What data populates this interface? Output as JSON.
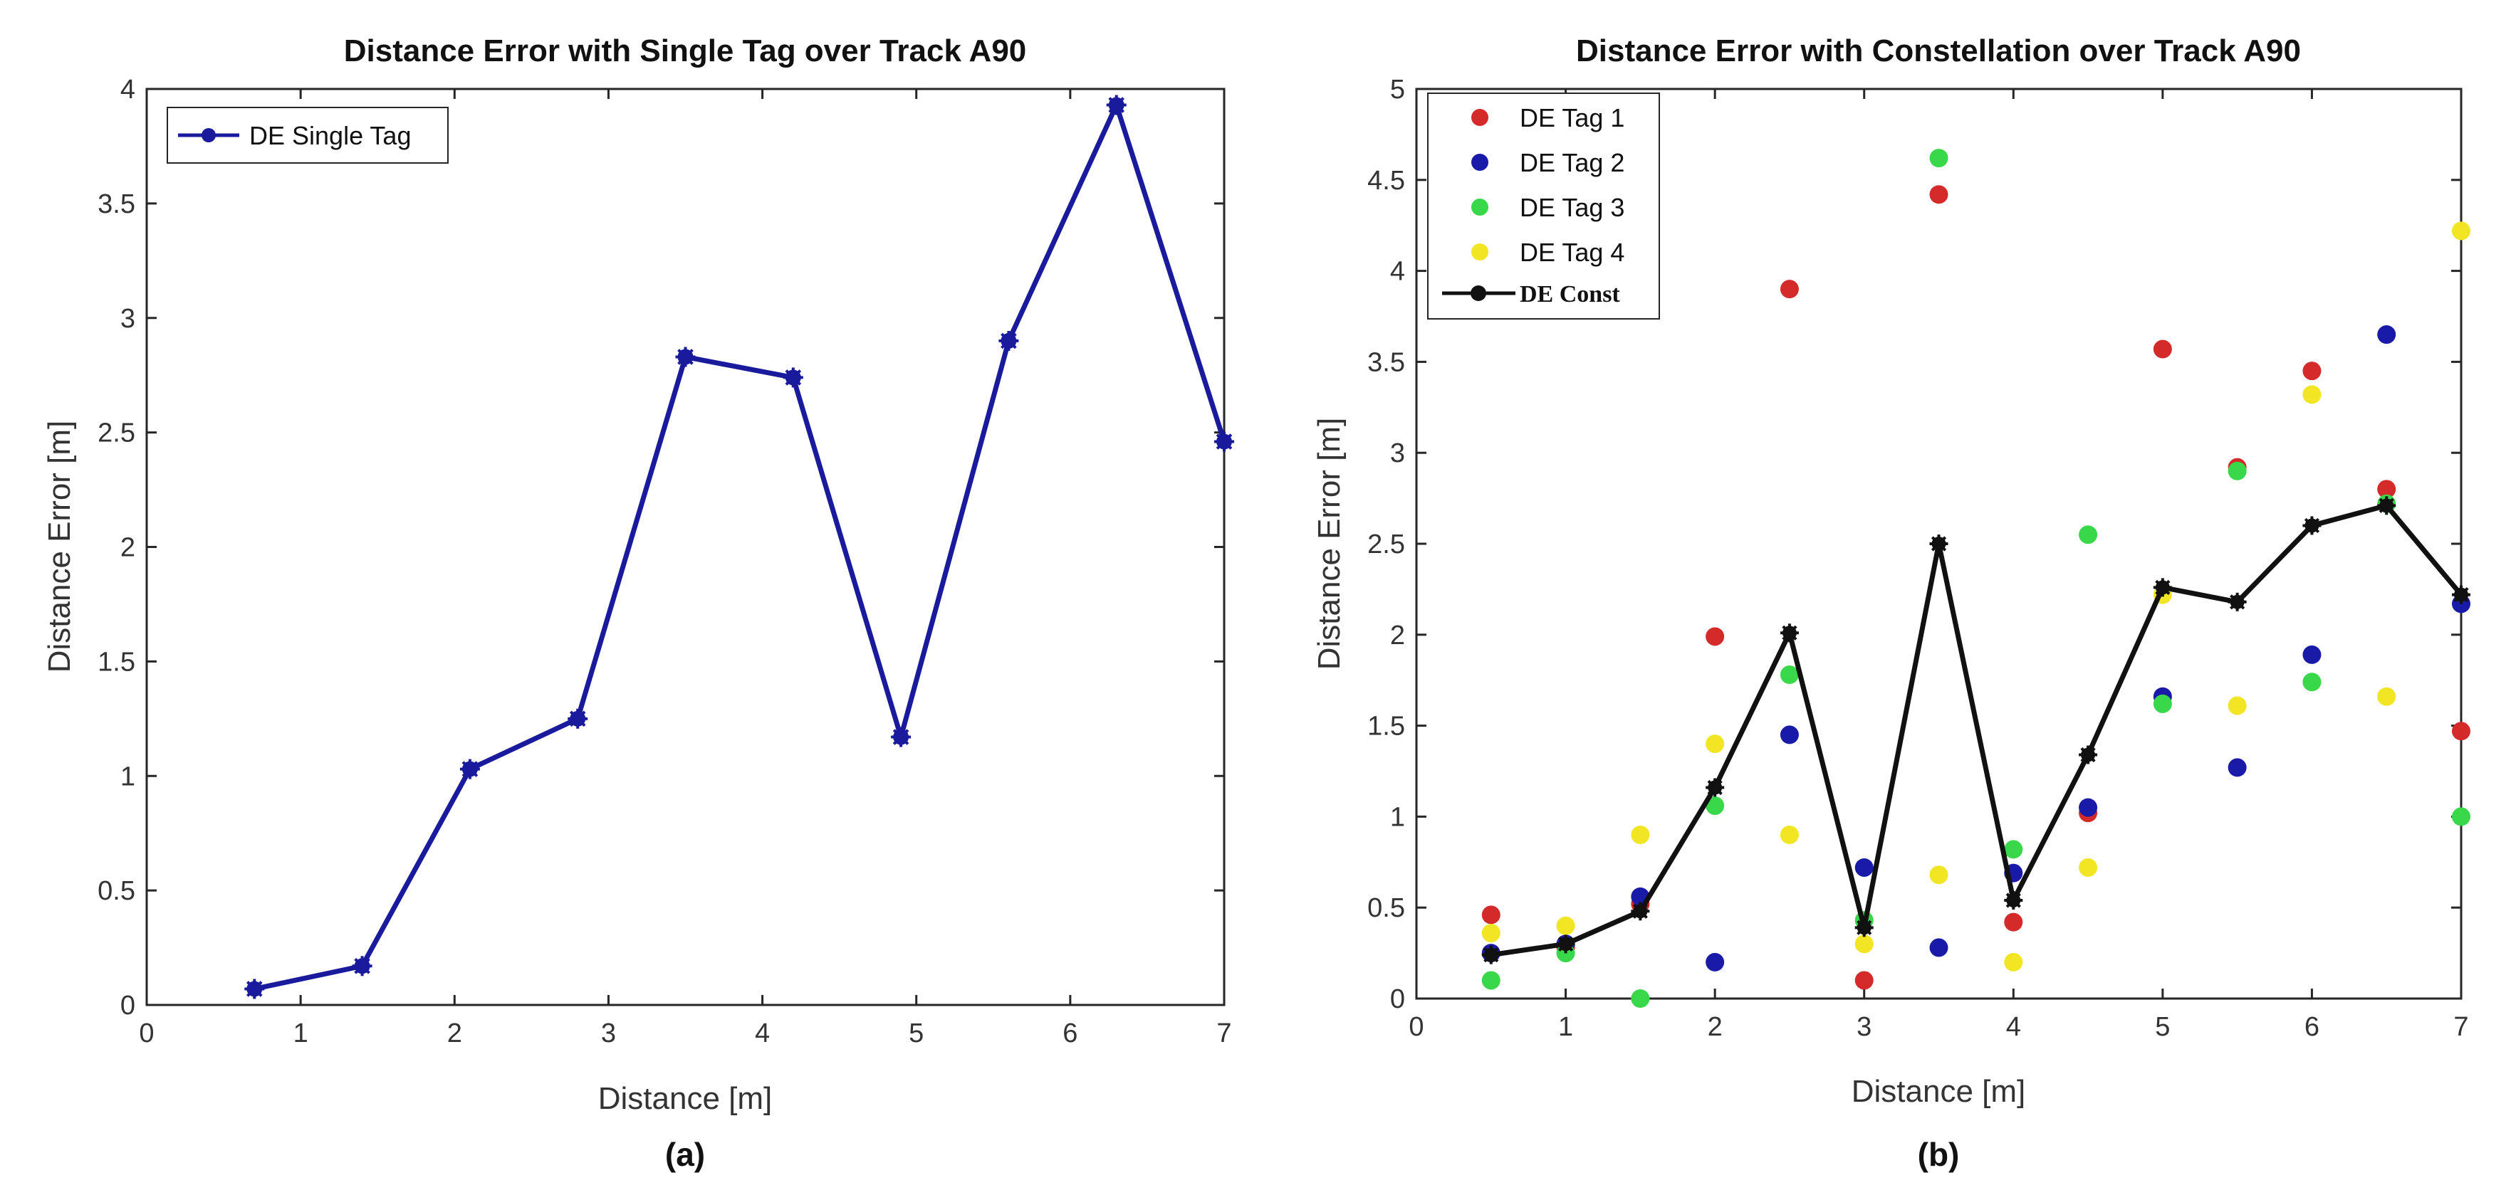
{
  "chart_data": [
    {
      "type": "line",
      "title": "Distance Error with Single Tag over Track A90",
      "xlabel": "Distance [m]",
      "ylabel": "Distance Error [m]",
      "caption": "(a)",
      "xlim": [
        0,
        7
      ],
      "ylim": [
        0,
        4
      ],
      "xticks": [
        "0",
        "1",
        "2",
        "3",
        "4",
        "5",
        "6",
        "7"
      ],
      "yticks": [
        "0",
        "0.5",
        "1",
        "1.5",
        "2",
        "2.5",
        "3",
        "3.5",
        "4"
      ],
      "grid": false,
      "legend_position": "top-left",
      "series": [
        {
          "name": "DE Single Tag",
          "color": "#1a1a9c",
          "x": [
            0.7,
            1.4,
            2.1,
            2.8,
            3.5,
            4.2,
            4.9,
            5.6,
            6.3,
            7.0
          ],
          "y": [
            0.07,
            0.17,
            1.03,
            1.25,
            2.83,
            2.74,
            1.17,
            2.9,
            3.93,
            2.46
          ]
        }
      ]
    },
    {
      "type": "scatter",
      "title": "Distance Error with Constellation over Track A90",
      "xlabel": "Distance [m]",
      "ylabel": "Distance Error [m]",
      "caption": "(b)",
      "xlim": [
        0,
        7
      ],
      "ylim": [
        0,
        5
      ],
      "xticks": [
        "0",
        "1",
        "2",
        "3",
        "4",
        "5",
        "6",
        "7"
      ],
      "yticks": [
        "0",
        "0.5",
        "1",
        "1.5",
        "2",
        "2.5",
        "3",
        "3.5",
        "4",
        "4.5",
        "5"
      ],
      "grid": false,
      "legend_position": "top-left",
      "x": [
        0.5,
        1.0,
        1.5,
        2.0,
        2.5,
        3.0,
        3.5,
        4.0,
        4.5,
        5.0,
        5.5,
        6.0,
        6.5,
        7.0
      ],
      "series": [
        {
          "name": "DE Tag 1",
          "style": "scatter",
          "color": "#d42a2a",
          "y": [
            0.46,
            0.28,
            0.52,
            1.99,
            3.9,
            0.1,
            4.42,
            0.42,
            1.02,
            3.57,
            2.92,
            3.45,
            2.8,
            1.47
          ]
        },
        {
          "name": "DE Tag 2",
          "style": "scatter",
          "color": "#1a1aa8",
          "y": [
            0.25,
            0.3,
            0.56,
            0.2,
            1.45,
            0.72,
            0.28,
            0.69,
            1.05,
            1.66,
            1.27,
            1.89,
            3.65,
            2.17
          ]
        },
        {
          "name": "DE Tag 3",
          "style": "scatter",
          "color": "#39d84a",
          "y": [
            0.1,
            0.25,
            0.0,
            1.06,
            1.78,
            0.43,
            4.62,
            0.82,
            2.55,
            1.62,
            2.9,
            1.74,
            2.72,
            1.0
          ]
        },
        {
          "name": "DE Tag 4",
          "style": "scatter",
          "color": "#f2e524",
          "y": [
            0.36,
            0.4,
            0.9,
            1.4,
            0.9,
            0.3,
            0.68,
            0.2,
            0.72,
            2.22,
            1.61,
            3.32,
            1.66,
            4.22
          ]
        },
        {
          "name": "DE Const",
          "style": "line",
          "color": "#111111",
          "y": [
            0.24,
            0.3,
            0.48,
            1.16,
            2.01,
            0.39,
            2.5,
            0.54,
            1.34,
            2.26,
            2.18,
            2.6,
            2.71,
            2.22
          ]
        }
      ]
    }
  ]
}
